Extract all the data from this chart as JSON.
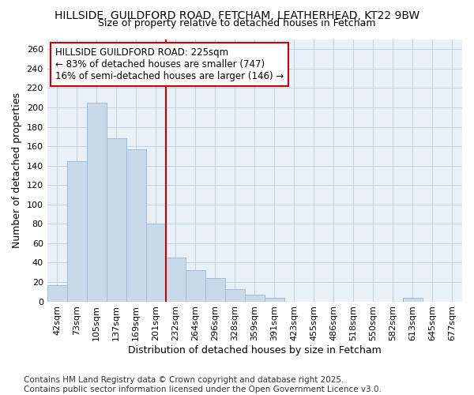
{
  "title": "HILLSIDE, GUILDFORD ROAD, FETCHAM, LEATHERHEAD, KT22 9BW",
  "subtitle": "Size of property relative to detached houses in Fetcham",
  "xlabel": "Distribution of detached houses by size in Fetcham",
  "ylabel": "Number of detached properties",
  "categories": [
    "42sqm",
    "73sqm",
    "105sqm",
    "137sqm",
    "169sqm",
    "201sqm",
    "232sqm",
    "264sqm",
    "296sqm",
    "328sqm",
    "359sqm",
    "391sqm",
    "423sqm",
    "455sqm",
    "486sqm",
    "518sqm",
    "550sqm",
    "582sqm",
    "613sqm",
    "645sqm",
    "677sqm"
  ],
  "values": [
    17,
    145,
    205,
    168,
    157,
    80,
    45,
    32,
    24,
    13,
    7,
    4,
    0,
    0,
    0,
    0,
    0,
    0,
    4,
    0,
    0
  ],
  "bar_color": "#c8d9ea",
  "bar_edge_color": "#a0bcd8",
  "vline_index": 6,
  "vline_color": "#cc0000",
  "annotation_box_text": "HILLSIDE GUILDFORD ROAD: 225sqm\n← 83% of detached houses are smaller (747)\n16% of semi-detached houses are larger (146) →",
  "ylim": [
    0,
    270
  ],
  "yticks": [
    0,
    20,
    40,
    60,
    80,
    100,
    120,
    140,
    160,
    180,
    200,
    220,
    240,
    260
  ],
  "footer_line1": "Contains HM Land Registry data © Crown copyright and database right 2025.",
  "footer_line2": "Contains public sector information licensed under the Open Government Licence v3.0.",
  "figure_background_color": "#ffffff",
  "plot_background_color": "#e8f0f8",
  "title_fontsize": 10,
  "subtitle_fontsize": 9,
  "axis_label_fontsize": 9,
  "tick_fontsize": 8,
  "annotation_fontsize": 8.5,
  "footer_fontsize": 7.5
}
